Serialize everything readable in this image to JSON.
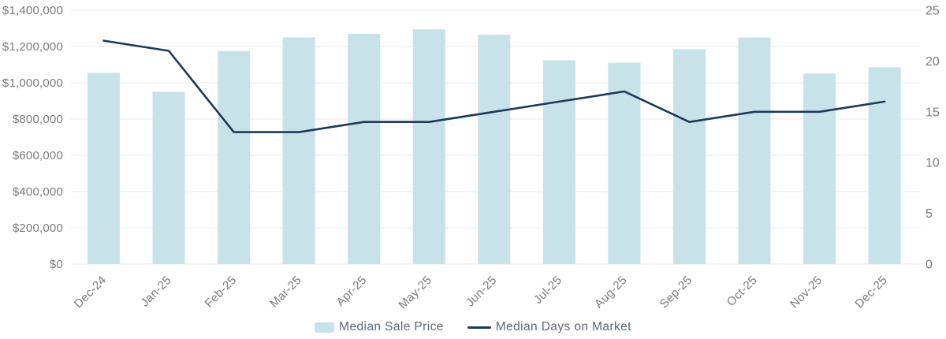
{
  "chart_data": {
    "type": "combo",
    "title": "",
    "categories": [
      "Dec-24",
      "Jan-25",
      "Feb-25",
      "Mar-25",
      "Apr-25",
      "May-25",
      "Jun-25",
      "Jul-25",
      "Aug-25",
      "Sep-25",
      "Oct-25",
      "Nov-25",
      "Dec-25"
    ],
    "series": [
      {
        "name": "Median Sale Price",
        "type": "bar",
        "axis": "left",
        "values": [
          1055000,
          950000,
          1175000,
          1250000,
          1270000,
          1295000,
          1265000,
          1125000,
          1110000,
          1185000,
          1250000,
          1050000,
          1085000
        ]
      },
      {
        "name": "Median Days on Market",
        "type": "line",
        "axis": "right",
        "values": [
          22,
          21,
          13,
          13,
          14,
          14,
          15,
          16,
          17,
          14,
          15,
          15,
          16
        ]
      }
    ],
    "left_axis": {
      "min": 0,
      "max": 1400000,
      "tick_labels": [
        "$0",
        "$200,000",
        "$400,000",
        "$600,000",
        "$800,000",
        "$1,000,000",
        "$1,200,000",
        "$1,400,000"
      ]
    },
    "right_axis": {
      "min": 0,
      "max": 25,
      "tick_labels": [
        "0",
        "5",
        "10",
        "15",
        "20",
        "25"
      ]
    },
    "grid": "horizontal-on",
    "legend_position": "bottom-center"
  },
  "legend": {
    "bar_label": "Median Sale Price",
    "line_label": "Median Days on Market"
  },
  "colors": {
    "bar_fill": "#c8e2ea",
    "line_stroke": "#1c3a58",
    "grid_line": "#e8e8e8",
    "axis_text": "#7b7b7b",
    "legend_text": "#5d6771",
    "background": "#ffffff"
  }
}
